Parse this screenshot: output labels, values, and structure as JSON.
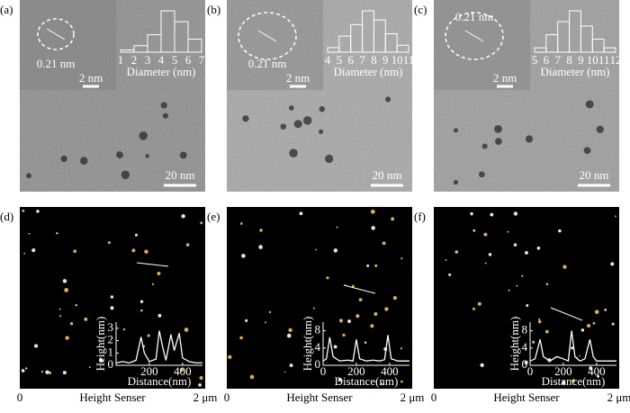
{
  "panels": [
    {
      "label": "(a)",
      "lattice": "0.21 nm",
      "inset_scale": "2 nm",
      "scale": "20 nm",
      "histogram": {
        "xlabel": "Diameter (nm)",
        "ticks": [
          "1",
          "2",
          "3",
          "4",
          "5",
          "6",
          "7"
        ],
        "counts": [
          5,
          15,
          40,
          95,
          70,
          30
        ]
      }
    },
    {
      "label": "(b)",
      "lattice": "0.21 nm",
      "inset_scale": "2 nm",
      "scale": "20 nm",
      "histogram": {
        "xlabel": "Diameter (nm)",
        "ticks": [
          "4",
          "5",
          "6",
          "7",
          "8",
          "9",
          "10",
          "11"
        ],
        "counts": [
          10,
          35,
          60,
          90,
          70,
          40,
          15
        ]
      }
    },
    {
      "label": "(c)",
      "lattice": "0.21 nm",
      "inset_scale": "2 nm",
      "scale": "20 nm",
      "histogram": {
        "xlabel": "Diameter (nm)",
        "ticks": [
          "5",
          "6",
          "7",
          "8",
          "9",
          "10",
          "11",
          "12"
        ],
        "counts": [
          10,
          40,
          70,
          95,
          60,
          30,
          10
        ]
      }
    },
    {
      "label": "(d)",
      "axis": {
        "start": "0",
        "label": "Height Senser",
        "end": "2 μm"
      },
      "profile": {
        "ylabel": "Height(nm)",
        "xlabel": "Distance(nm)",
        "xlim": [
          0,
          520
        ],
        "ylim": [
          0,
          3.5
        ],
        "xticks": [
          200,
          400
        ],
        "yticks": [
          0,
          1,
          2,
          3
        ],
        "x": [
          0,
          40,
          80,
          120,
          150,
          170,
          200,
          240,
          260,
          280,
          300,
          330,
          350,
          380,
          400,
          440,
          480,
          520
        ],
        "y": [
          0.2,
          0.3,
          0.2,
          0.4,
          2.3,
          1.0,
          0.3,
          0.5,
          2.8,
          1.5,
          0.4,
          2.5,
          1.2,
          2.6,
          0.6,
          0.3,
          0.2,
          0.2
        ]
      }
    },
    {
      "label": "(e)",
      "axis": {
        "start": "0",
        "label": "Height Senser",
        "end": "2 μm"
      },
      "profile": {
        "ylabel": "Height(nm)",
        "xlabel": "Distance(nm)",
        "xlim": [
          0,
          520
        ],
        "ylim": [
          0,
          10
        ],
        "xticks": [
          0,
          200,
          400
        ],
        "yticks": [
          0,
          4,
          8
        ],
        "x": [
          0,
          20,
          40,
          60,
          100,
          150,
          180,
          200,
          220,
          260,
          300,
          340,
          370,
          390,
          410,
          450,
          500,
          520
        ],
        "y": [
          1,
          1.5,
          6.5,
          2,
          1,
          1.2,
          1,
          6,
          1.5,
          1,
          1.2,
          1,
          1.3,
          7,
          1.5,
          1,
          1,
          1
        ]
      }
    },
    {
      "label": "(f)",
      "axis": {
        "start": "0",
        "label": "Height Senser",
        "end": "2 μm"
      },
      "profile": {
        "ylabel": "Height(nm)",
        "xlabel": "Distance(nm)",
        "xlim": [
          0,
          520
        ],
        "ylim": [
          0,
          10
        ],
        "xticks": [
          0,
          200,
          400
        ],
        "yticks": [
          0,
          4,
          8
        ],
        "x": [
          0,
          30,
          60,
          80,
          120,
          160,
          200,
          230,
          250,
          270,
          300,
          330,
          360,
          380,
          400,
          440,
          480,
          520
        ],
        "y": [
          1,
          1.5,
          6,
          2,
          1,
          2,
          1.5,
          1,
          8,
          2,
          1,
          1.5,
          6,
          2,
          1,
          1,
          1,
          1
        ]
      }
    }
  ]
}
